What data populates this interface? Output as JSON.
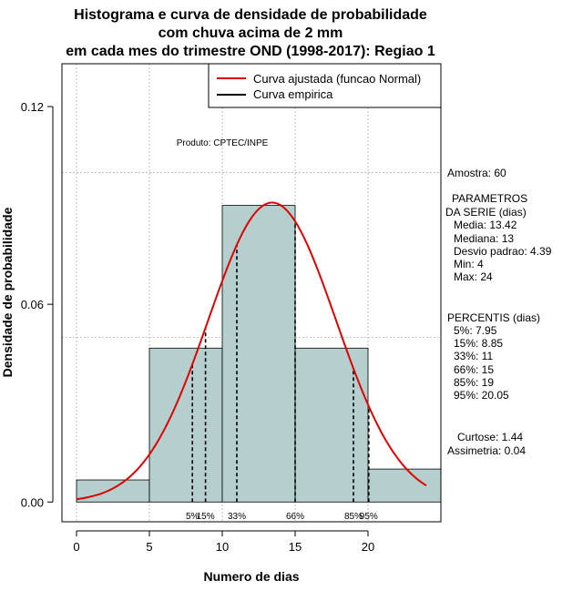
{
  "chart_data": {
    "type": "histogram",
    "title": [
      "Histograma e curva de densidade de probabilidade",
      "com chuva acima de 2 mm",
      "em cada mes do trimestre OND (1998-2017): Regiao 1"
    ],
    "xlabel": "Numero de dias",
    "ylabel": "Densidade de probabilidade",
    "xlim": [
      -1,
      25
    ],
    "ylim": [
      -0.006,
      0.133
    ],
    "x_ticks": [
      0,
      5,
      10,
      15,
      20
    ],
    "x_tick_labels": [
      "0",
      "5",
      "10",
      "15",
      "20"
    ],
    "y_ticks": [
      0.0,
      0.06,
      0.12
    ],
    "y_tick_labels": [
      "0.00",
      "0.06",
      "0.12"
    ],
    "grid_v": [
      0,
      5,
      10,
      15,
      20
    ],
    "grid_h": [
      0.05,
      0.1
    ],
    "bins": [
      {
        "start": 0,
        "end": 5,
        "density": 0.0067
      },
      {
        "start": 5,
        "end": 10,
        "density": 0.0467
      },
      {
        "start": 10,
        "end": 15,
        "density": 0.09
      },
      {
        "start": 15,
        "end": 20,
        "density": 0.0467
      },
      {
        "start": 20,
        "end": 25,
        "density": 0.01
      }
    ],
    "bar_color": "#b5cfcf",
    "normal_curve": {
      "mean": 13.42,
      "sd": 4.39,
      "x_from": 0,
      "x_to": 24,
      "color": "#dd0000"
    },
    "percentile_markers": [
      {
        "label": "5%",
        "value": 7.95
      },
      {
        "label": "15%",
        "value": 8.85
      },
      {
        "label": "33%",
        "value": 11
      },
      {
        "label": "66%",
        "value": 15
      },
      {
        "label": "85%",
        "value": 19
      },
      {
        "label": "95%",
        "value": 20.05
      }
    ],
    "legend": [
      {
        "label": "Curva ajustada (funcao Normal)",
        "color": "#dd0000"
      },
      {
        "label": "Curva empirica",
        "color": "#000000"
      }
    ],
    "legend_position": "top-right"
  },
  "product_label": "Produto: CPTEC/INPE",
  "side_panel": {
    "sample": "Amostra: 60",
    "params_title_1": "PARAMETROS",
    "params_title_2": "DA SERIE (dias)",
    "params": [
      "Media: 13.42",
      "Mediana: 13",
      "Desvio padrao: 4.39",
      "Min: 4",
      "Max: 24"
    ],
    "percentis_title": "PERCENTIS (dias)",
    "percentis": [
      "5%: 7.95",
      "15%: 8.85",
      "33%: 11",
      "66%: 15",
      "85%: 19",
      "95%: 20.05"
    ],
    "curtose": "Curtose: 1.44",
    "assimetria": "Assimetria: 0.04"
  }
}
